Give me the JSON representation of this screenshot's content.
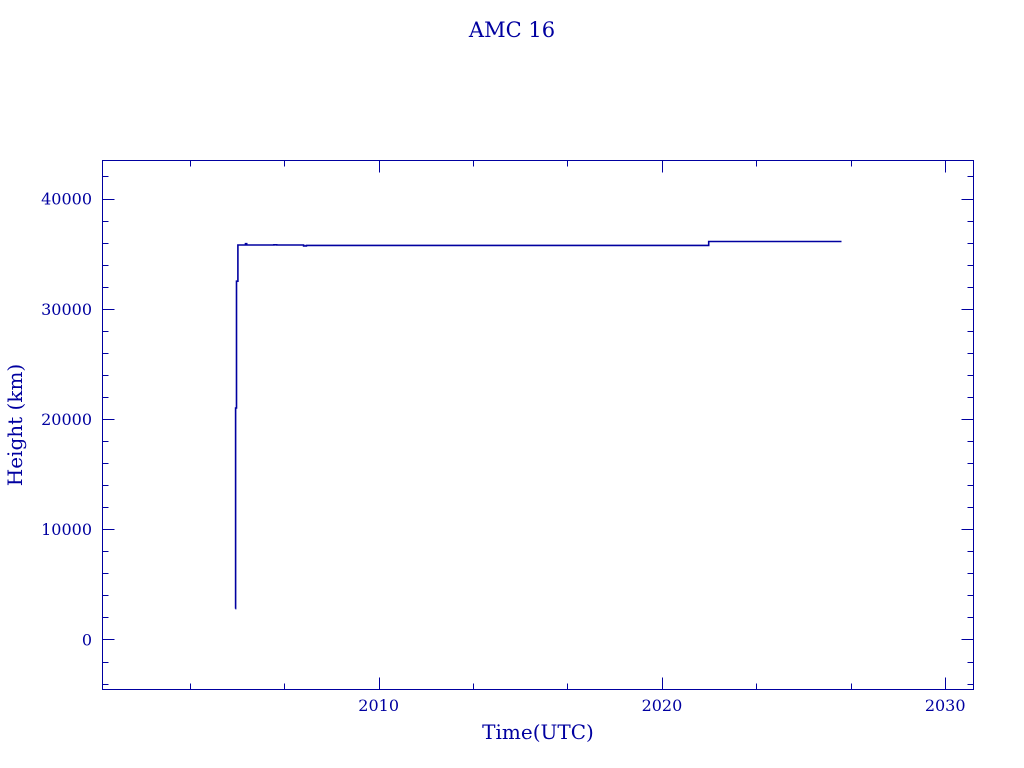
{
  "chart_data": {
    "type": "line",
    "title": "AMC 16",
    "xlabel": "Time(UTC)",
    "ylabel": "Height (km)",
    "xlim": [
      2000.25,
      2031.0
    ],
    "ylim": [
      -4540,
      43450
    ],
    "x_major_ticks": [
      2010,
      2020,
      2030
    ],
    "x_tick_labels": [
      "2010",
      "2020",
      "2030"
    ],
    "y_major_ticks": [
      0,
      10000,
      20000,
      30000,
      40000
    ],
    "y_tick_labels": [
      "0",
      "10000",
      "20000",
      "30000",
      "40000"
    ],
    "y_minor_step": 2000,
    "x_minor_step": 3.333,
    "grid": false,
    "color": "#0000a0",
    "series": [
      {
        "step": true,
        "x": [
          2004.94,
          2004.95,
          2004.98,
          2005.03,
          2005.3,
          2005.34,
          2006.3,
          2006.4,
          2007.35,
          2007.45,
          2021.65,
          2026.34
        ],
        "y": [
          2800,
          21000,
          32500,
          35780,
          35900,
          35780,
          35800,
          35780,
          35700,
          35750,
          36100,
          36100
        ]
      }
    ]
  }
}
